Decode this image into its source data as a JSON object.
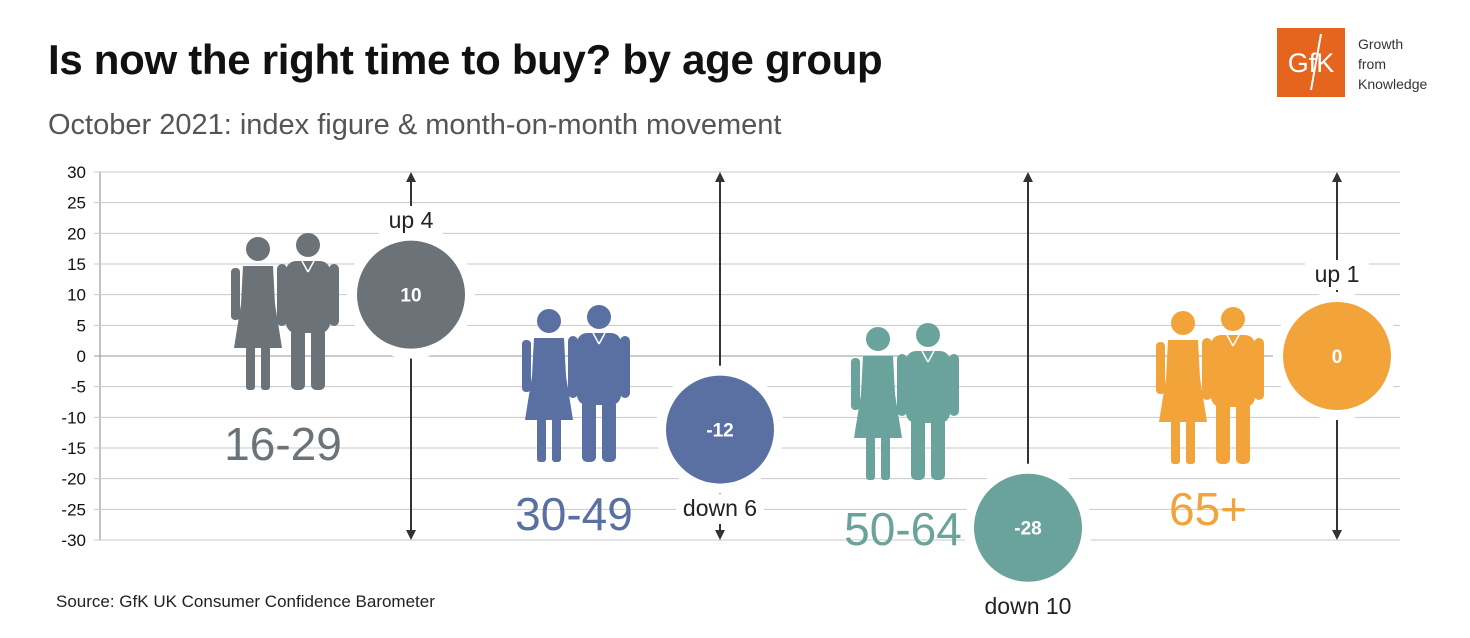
{
  "header": {
    "title": "Is now the right time to buy?  by age group",
    "subtitle": "October 2021: index figure & month-on-month movement"
  },
  "footer": {
    "source": "Source: GfK UK Consumer Confidence Barometer"
  },
  "logo": {
    "mark": "GfK",
    "tagline": [
      "Growth",
      "from",
      "Knowledge"
    ],
    "color": "#E5641E"
  },
  "chart_data": {
    "type": "scatter",
    "ylim": [
      -30,
      30
    ],
    "yticks": [
      30,
      25,
      20,
      15,
      10,
      5,
      0,
      -5,
      -10,
      -15,
      -20,
      -25,
      -30
    ],
    "grid": true,
    "series": [
      {
        "age_group": "16-29",
        "value": 10,
        "value_label": "10",
        "movement": 4,
        "movement_label": "up 4",
        "color": "#6B7379",
        "icon": "couple-young-icon"
      },
      {
        "age_group": "30-49",
        "value": -12,
        "value_label": "-12",
        "movement": -6,
        "movement_label": "down 6",
        "color": "#5A70A2",
        "icon": "couple-business-icon"
      },
      {
        "age_group": "50-64",
        "value": -28,
        "value_label": "-28",
        "movement": -10,
        "movement_label": "down 10",
        "color": "#6AA39C",
        "icon": "couple-formal-icon"
      },
      {
        "age_group": "65+",
        "value": 0,
        "value_label": "0",
        "movement": 1,
        "movement_label": "up 1",
        "color": "#F2A43A",
        "icon": "couple-senior-icon"
      }
    ]
  }
}
